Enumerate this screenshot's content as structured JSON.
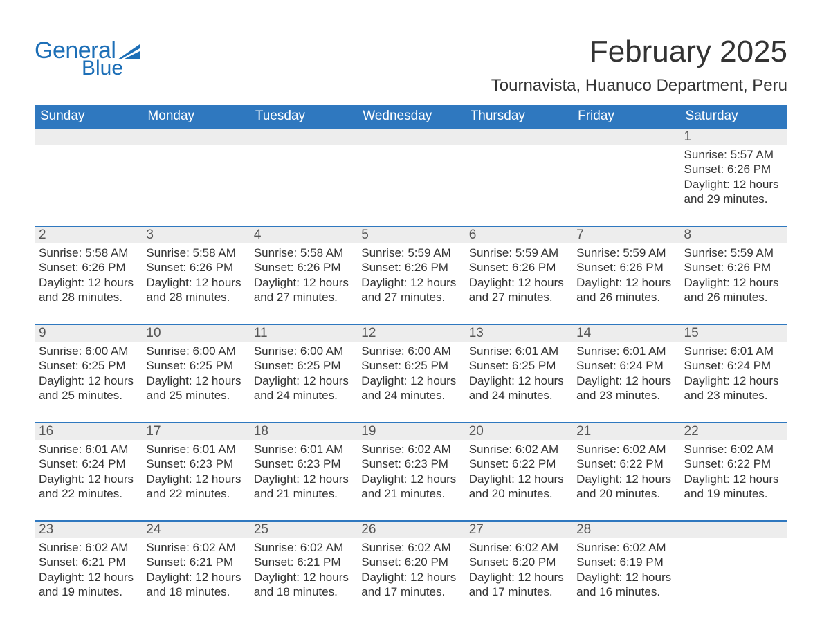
{
  "logo": {
    "text1": "General",
    "text2": "Blue",
    "icon_color": "#1d6fb7"
  },
  "title": "February 2025",
  "location": "Tournavista, Huanuco Department, Peru",
  "colors": {
    "header_bg": "#2f78bf",
    "header_text": "#ffffff",
    "bar_bg": "#ededed",
    "bar_border": "#2f78bf",
    "body_text": "#333333"
  },
  "weekdays": [
    "Sunday",
    "Monday",
    "Tuesday",
    "Wednesday",
    "Thursday",
    "Friday",
    "Saturday"
  ],
  "weeks": [
    [
      null,
      null,
      null,
      null,
      null,
      null,
      {
        "d": "1",
        "sr": "Sunrise: 5:57 AM",
        "ss": "Sunset: 6:26 PM",
        "dl1": "Daylight: 12 hours",
        "dl2": "and 29 minutes."
      }
    ],
    [
      {
        "d": "2",
        "sr": "Sunrise: 5:58 AM",
        "ss": "Sunset: 6:26 PM",
        "dl1": "Daylight: 12 hours",
        "dl2": "and 28 minutes."
      },
      {
        "d": "3",
        "sr": "Sunrise: 5:58 AM",
        "ss": "Sunset: 6:26 PM",
        "dl1": "Daylight: 12 hours",
        "dl2": "and 28 minutes."
      },
      {
        "d": "4",
        "sr": "Sunrise: 5:58 AM",
        "ss": "Sunset: 6:26 PM",
        "dl1": "Daylight: 12 hours",
        "dl2": "and 27 minutes."
      },
      {
        "d": "5",
        "sr": "Sunrise: 5:59 AM",
        "ss": "Sunset: 6:26 PM",
        "dl1": "Daylight: 12 hours",
        "dl2": "and 27 minutes."
      },
      {
        "d": "6",
        "sr": "Sunrise: 5:59 AM",
        "ss": "Sunset: 6:26 PM",
        "dl1": "Daylight: 12 hours",
        "dl2": "and 27 minutes."
      },
      {
        "d": "7",
        "sr": "Sunrise: 5:59 AM",
        "ss": "Sunset: 6:26 PM",
        "dl1": "Daylight: 12 hours",
        "dl2": "and 26 minutes."
      },
      {
        "d": "8",
        "sr": "Sunrise: 5:59 AM",
        "ss": "Sunset: 6:26 PM",
        "dl1": "Daylight: 12 hours",
        "dl2": "and 26 minutes."
      }
    ],
    [
      {
        "d": "9",
        "sr": "Sunrise: 6:00 AM",
        "ss": "Sunset: 6:25 PM",
        "dl1": "Daylight: 12 hours",
        "dl2": "and 25 minutes."
      },
      {
        "d": "10",
        "sr": "Sunrise: 6:00 AM",
        "ss": "Sunset: 6:25 PM",
        "dl1": "Daylight: 12 hours",
        "dl2": "and 25 minutes."
      },
      {
        "d": "11",
        "sr": "Sunrise: 6:00 AM",
        "ss": "Sunset: 6:25 PM",
        "dl1": "Daylight: 12 hours",
        "dl2": "and 24 minutes."
      },
      {
        "d": "12",
        "sr": "Sunrise: 6:00 AM",
        "ss": "Sunset: 6:25 PM",
        "dl1": "Daylight: 12 hours",
        "dl2": "and 24 minutes."
      },
      {
        "d": "13",
        "sr": "Sunrise: 6:01 AM",
        "ss": "Sunset: 6:25 PM",
        "dl1": "Daylight: 12 hours",
        "dl2": "and 24 minutes."
      },
      {
        "d": "14",
        "sr": "Sunrise: 6:01 AM",
        "ss": "Sunset: 6:24 PM",
        "dl1": "Daylight: 12 hours",
        "dl2": "and 23 minutes."
      },
      {
        "d": "15",
        "sr": "Sunrise: 6:01 AM",
        "ss": "Sunset: 6:24 PM",
        "dl1": "Daylight: 12 hours",
        "dl2": "and 23 minutes."
      }
    ],
    [
      {
        "d": "16",
        "sr": "Sunrise: 6:01 AM",
        "ss": "Sunset: 6:24 PM",
        "dl1": "Daylight: 12 hours",
        "dl2": "and 22 minutes."
      },
      {
        "d": "17",
        "sr": "Sunrise: 6:01 AM",
        "ss": "Sunset: 6:23 PM",
        "dl1": "Daylight: 12 hours",
        "dl2": "and 22 minutes."
      },
      {
        "d": "18",
        "sr": "Sunrise: 6:01 AM",
        "ss": "Sunset: 6:23 PM",
        "dl1": "Daylight: 12 hours",
        "dl2": "and 21 minutes."
      },
      {
        "d": "19",
        "sr": "Sunrise: 6:02 AM",
        "ss": "Sunset: 6:23 PM",
        "dl1": "Daylight: 12 hours",
        "dl2": "and 21 minutes."
      },
      {
        "d": "20",
        "sr": "Sunrise: 6:02 AM",
        "ss": "Sunset: 6:22 PM",
        "dl1": "Daylight: 12 hours",
        "dl2": "and 20 minutes."
      },
      {
        "d": "21",
        "sr": "Sunrise: 6:02 AM",
        "ss": "Sunset: 6:22 PM",
        "dl1": "Daylight: 12 hours",
        "dl2": "and 20 minutes."
      },
      {
        "d": "22",
        "sr": "Sunrise: 6:02 AM",
        "ss": "Sunset: 6:22 PM",
        "dl1": "Daylight: 12 hours",
        "dl2": "and 19 minutes."
      }
    ],
    [
      {
        "d": "23",
        "sr": "Sunrise: 6:02 AM",
        "ss": "Sunset: 6:21 PM",
        "dl1": "Daylight: 12 hours",
        "dl2": "and 19 minutes."
      },
      {
        "d": "24",
        "sr": "Sunrise: 6:02 AM",
        "ss": "Sunset: 6:21 PM",
        "dl1": "Daylight: 12 hours",
        "dl2": "and 18 minutes."
      },
      {
        "d": "25",
        "sr": "Sunrise: 6:02 AM",
        "ss": "Sunset: 6:21 PM",
        "dl1": "Daylight: 12 hours",
        "dl2": "and 18 minutes."
      },
      {
        "d": "26",
        "sr": "Sunrise: 6:02 AM",
        "ss": "Sunset: 6:20 PM",
        "dl1": "Daylight: 12 hours",
        "dl2": "and 17 minutes."
      },
      {
        "d": "27",
        "sr": "Sunrise: 6:02 AM",
        "ss": "Sunset: 6:20 PM",
        "dl1": "Daylight: 12 hours",
        "dl2": "and 17 minutes."
      },
      {
        "d": "28",
        "sr": "Sunrise: 6:02 AM",
        "ss": "Sunset: 6:19 PM",
        "dl1": "Daylight: 12 hours",
        "dl2": "and 16 minutes."
      },
      null
    ]
  ]
}
